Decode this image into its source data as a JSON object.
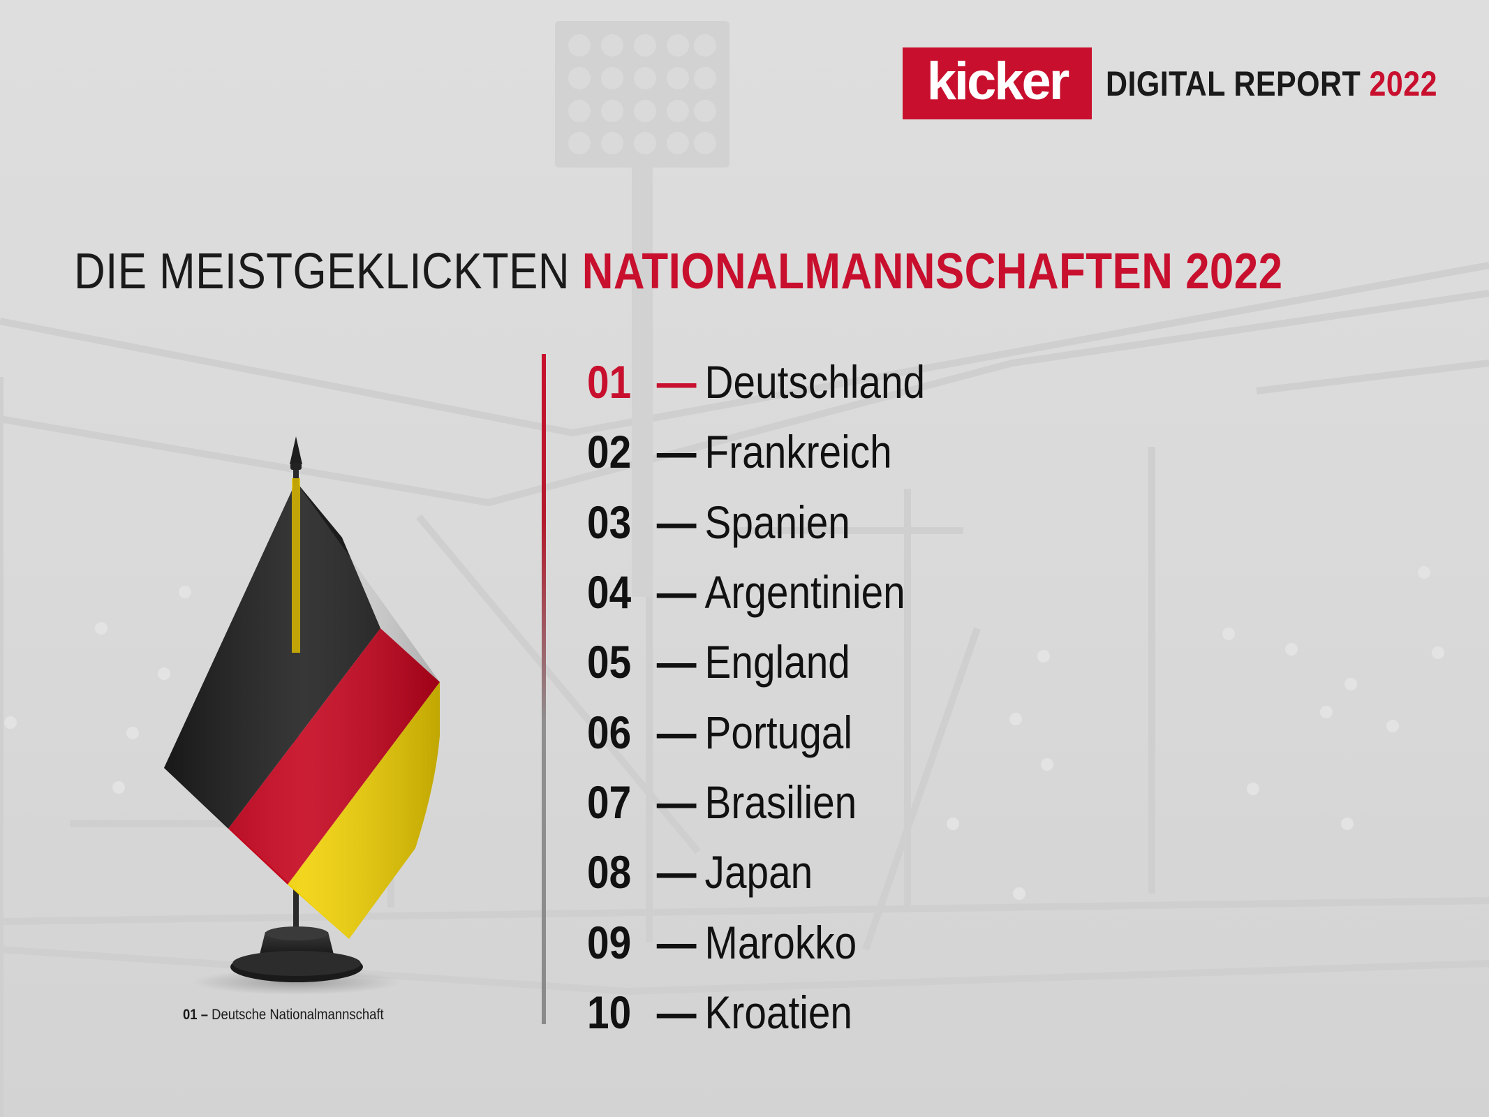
{
  "brand": {
    "logo_text": "kicker",
    "report_label": "DIGITAL REPORT",
    "report_year": "2022",
    "accent_color": "#c8102e"
  },
  "headline": {
    "prefix": "DIE MEISTGEKLICKTEN",
    "highlight": "NATIONALMANNSCHAFTEN 2022"
  },
  "ranking": [
    {
      "rank": "01",
      "dash": "—",
      "name": "Deutschland"
    },
    {
      "rank": "02",
      "dash": "—",
      "name": "Frankreich"
    },
    {
      "rank": "03",
      "dash": "—",
      "name": "Spanien"
    },
    {
      "rank": "04",
      "dash": "—",
      "name": "Argentinien"
    },
    {
      "rank": "05",
      "dash": "—",
      "name": "England"
    },
    {
      "rank": "06",
      "dash": "—",
      "name": "Portugal"
    },
    {
      "rank": "07",
      "dash": "—",
      "name": "Brasilien"
    },
    {
      "rank": "08",
      "dash": "—",
      "name": "Japan"
    },
    {
      "rank": "09",
      "dash": "—",
      "name": "Marokko"
    },
    {
      "rank": "10",
      "dash": "—",
      "name": "Kroatien"
    }
  ],
  "flag": {
    "icon": "germany-table-flag-icon",
    "colors": [
      "#1c1c1c",
      "#c4001a",
      "#f0d000"
    ]
  },
  "caption": {
    "rank": "01 –",
    "text": "Deutsche Nationalmannschaft"
  }
}
